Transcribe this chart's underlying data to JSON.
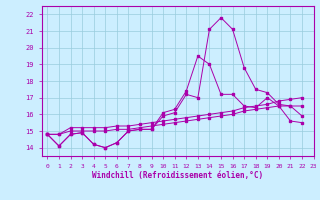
{
  "xlabel": "Windchill (Refroidissement éolien,°C)",
  "xlim": [
    -0.5,
    23
  ],
  "ylim": [
    13.5,
    22.5
  ],
  "yticks": [
    14,
    15,
    16,
    17,
    18,
    19,
    20,
    21,
    22
  ],
  "xticks": [
    0,
    1,
    2,
    3,
    4,
    5,
    6,
    7,
    8,
    9,
    10,
    11,
    12,
    13,
    14,
    15,
    16,
    17,
    18,
    19,
    20,
    21,
    22,
    23
  ],
  "bg_color": "#cceeff",
  "line_color": "#aa00aa",
  "grid_color": "#99ccdd",
  "lines": [
    [
      14.8,
      14.1,
      14.8,
      14.9,
      14.2,
      14.0,
      14.3,
      15.0,
      15.1,
      15.1,
      16.1,
      16.3,
      17.4,
      19.5,
      19.0,
      17.2,
      17.2,
      16.5,
      16.4,
      17.0,
      16.5,
      15.6,
      15.5
    ],
    [
      14.8,
      14.1,
      14.8,
      14.9,
      14.2,
      14.0,
      14.3,
      15.0,
      15.1,
      15.1,
      15.9,
      16.1,
      17.2,
      17.0,
      21.1,
      21.8,
      21.1,
      18.8,
      17.5,
      17.3,
      16.6,
      16.5,
      15.9
    ],
    [
      14.8,
      14.8,
      15.2,
      15.2,
      15.2,
      15.2,
      15.3,
      15.3,
      15.4,
      15.5,
      15.6,
      15.7,
      15.8,
      15.9,
      16.0,
      16.1,
      16.2,
      16.4,
      16.5,
      16.6,
      16.8,
      16.9,
      17.0
    ],
    [
      14.8,
      14.8,
      15.0,
      15.0,
      15.0,
      15.0,
      15.1,
      15.1,
      15.2,
      15.3,
      15.4,
      15.5,
      15.6,
      15.7,
      15.8,
      15.9,
      16.0,
      16.2,
      16.3,
      16.4,
      16.5,
      16.5,
      16.5
    ]
  ],
  "figsize": [
    3.2,
    2.0
  ],
  "dpi": 100
}
